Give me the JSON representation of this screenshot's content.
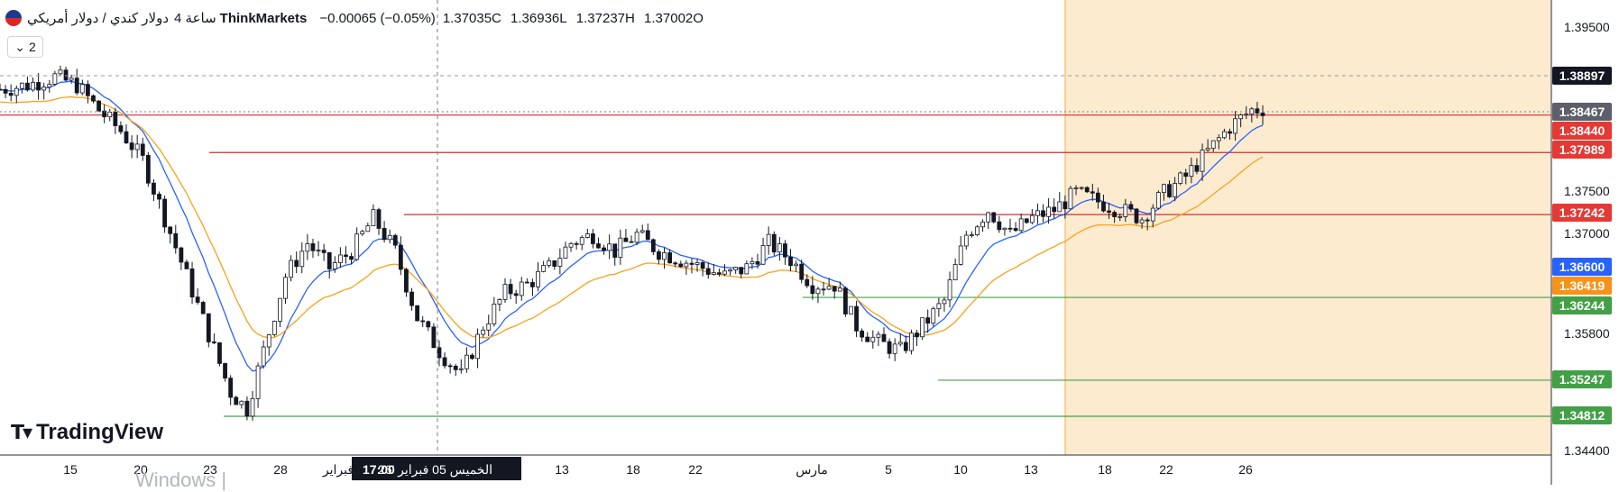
{
  "header": {
    "symbol": "دولار كندي / دولار أمريكي",
    "timeframe": "4 ساعة",
    "broker": "ThinkMarkets",
    "change": "−0.00065 (−0.05%)",
    "close": "1.37035C",
    "low": "1.36936L",
    "high": "1.37237H",
    "open": "1.37002O"
  },
  "indicator_toggle": {
    "count": "2",
    "icon": "chevron-down-icon"
  },
  "logo": {
    "text": "TradingView"
  },
  "watermark": {
    "text": "Windows |"
  },
  "crosshair_label": {
    "date": "الخميس 05 فبراير '26",
    "time": "17:00"
  },
  "colors": {
    "up": "#131722",
    "down": "#131722",
    "ema_fast": "#2962ff",
    "ema_slow": "#f7a21b",
    "resistance": "#d32f2f",
    "support": "#43a047",
    "highlight": "#fdebd0",
    "highlight_edge": "#f4b75b"
  },
  "chart_data": {
    "type": "candlestick",
    "y_ticks": [
      "1.39500",
      "1.37500",
      "1.37000",
      "1.35800",
      "1.34400"
    ],
    "x_ticks": [
      "15",
      "20",
      "23",
      "28",
      "فبراير",
      "13",
      "18",
      "22",
      "مارس",
      "5",
      "10",
      "13",
      "18",
      "22",
      "26"
    ],
    "price_labels": [
      {
        "value": "1.38897",
        "kind": "current"
      },
      {
        "value": "1.38467",
        "kind": "crosshair"
      },
      {
        "value": "1.38440",
        "kind": "resistance"
      },
      {
        "value": "1.37989",
        "kind": "resistance"
      },
      {
        "value": "1.37242",
        "kind": "resistance"
      },
      {
        "value": "1.36600",
        "kind": "ema_fast"
      },
      {
        "value": "1.36419",
        "kind": "ema_slow"
      },
      {
        "value": "1.36244",
        "kind": "support"
      },
      {
        "value": "1.35247",
        "kind": "support"
      },
      {
        "value": "1.34812",
        "kind": "support"
      }
    ],
    "resistance_levels": [
      1.3844,
      1.37989,
      1.37242
    ],
    "support_levels": [
      1.36244,
      1.35247,
      1.34812
    ],
    "close_path": [
      [
        0,
        1.3875
      ],
      [
        5,
        1.388
      ],
      [
        10,
        1.389
      ],
      [
        14,
        1.388
      ],
      [
        18,
        1.385
      ],
      [
        22,
        1.3825
      ],
      [
        26,
        1.379
      ],
      [
        30,
        1.372
      ],
      [
        34,
        1.365
      ],
      [
        38,
        1.358
      ],
      [
        42,
        1.351
      ],
      [
        45,
        1.349
      ],
      [
        48,
        1.356
      ],
      [
        52,
        1.365
      ],
      [
        56,
        1.369
      ],
      [
        60,
        1.366
      ],
      [
        64,
        1.368
      ],
      [
        68,
        1.372
      ],
      [
        72,
        1.368
      ],
      [
        76,
        1.36
      ],
      [
        80,
        1.356
      ],
      [
        84,
        1.353
      ],
      [
        88,
        1.359
      ],
      [
        92,
        1.363
      ],
      [
        96,
        1.364
      ],
      [
        100,
        1.366
      ],
      [
        104,
        1.369
      ],
      [
        108,
        1.37
      ],
      [
        112,
        1.368
      ],
      [
        116,
        1.37
      ],
      [
        120,
        1.368
      ],
      [
        124,
        1.367
      ],
      [
        128,
        1.366
      ],
      [
        132,
        1.365
      ],
      [
        136,
        1.366
      ],
      [
        140,
        1.369
      ],
      [
        144,
        1.367
      ],
      [
        148,
        1.364
      ],
      [
        152,
        1.364
      ],
      [
        156,
        1.359
      ],
      [
        160,
        1.357
      ],
      [
        164,
        1.356
      ],
      [
        168,
        1.359
      ],
      [
        172,
        1.362
      ],
      [
        176,
        1.37
      ],
      [
        180,
        1.373
      ],
      [
        184,
        1.37
      ],
      [
        188,
        1.372
      ],
      [
        192,
        1.373
      ],
      [
        196,
        1.375
      ],
      [
        200,
        1.374
      ],
      [
        204,
        1.373
      ],
      [
        208,
        1.372
      ],
      [
        212,
        1.375
      ],
      [
        216,
        1.377
      ],
      [
        220,
        1.38
      ],
      [
        224,
        1.383
      ],
      [
        228,
        1.385
      ],
      [
        230,
        1.3852
      ]
    ]
  }
}
